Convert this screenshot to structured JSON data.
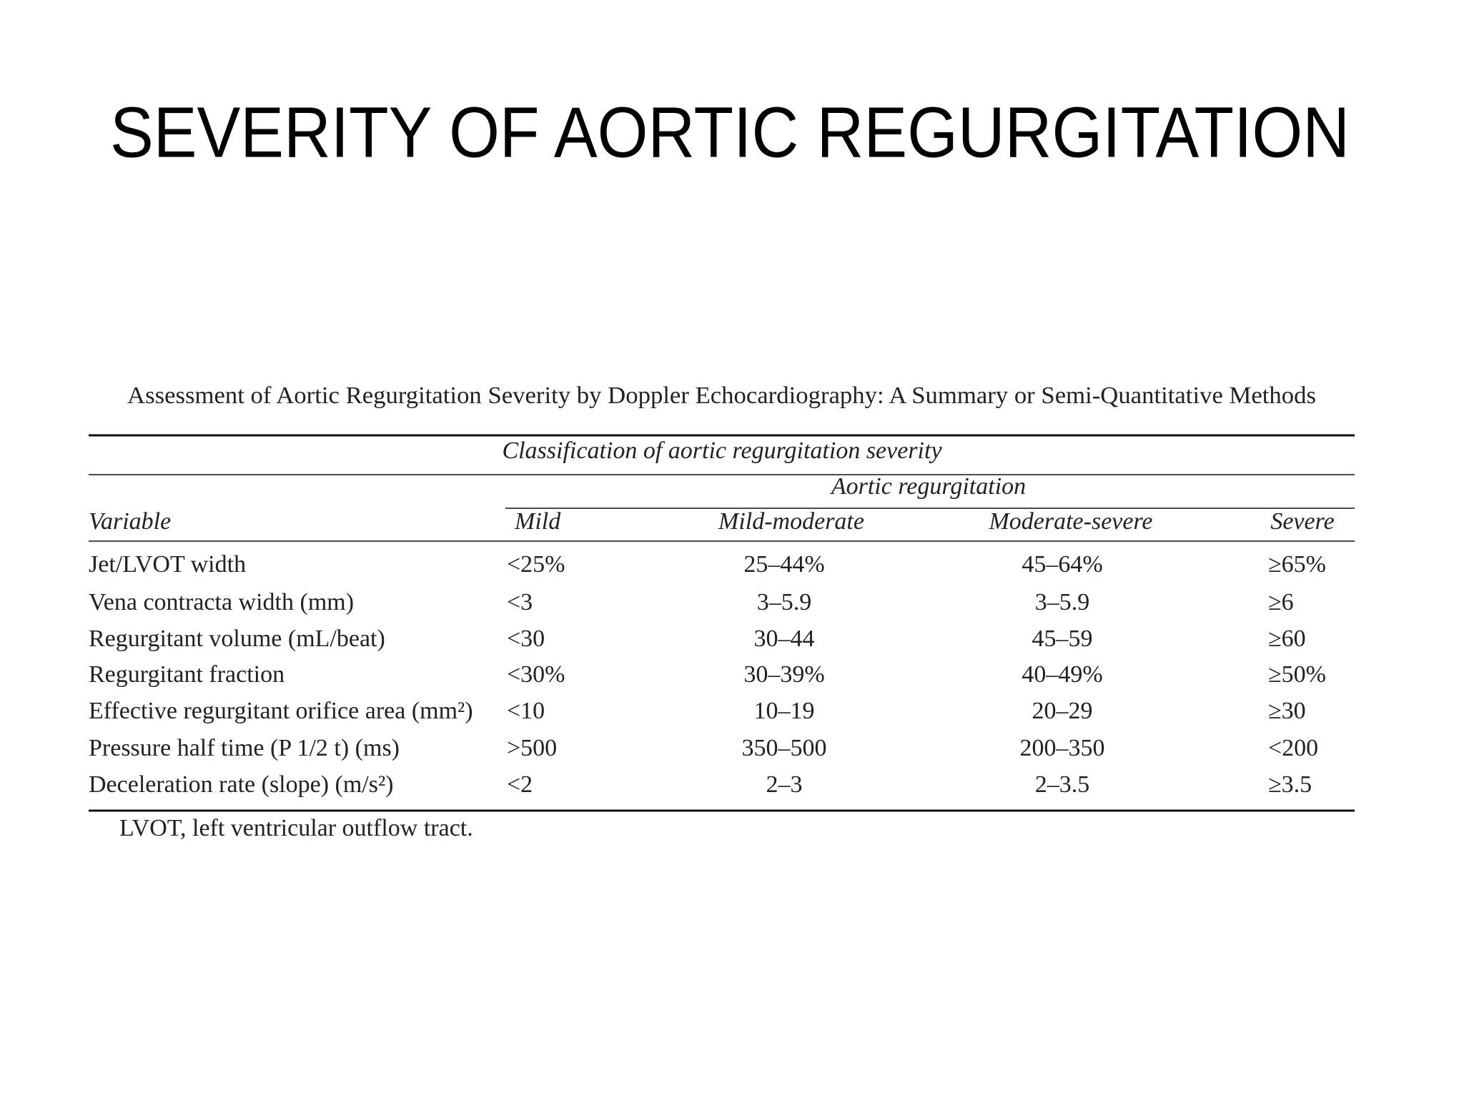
{
  "title": "SEVERITY OF AORTIC REGURGITATION",
  "table": {
    "caption": "Assessment of Aortic Regurgitation Severity by Doppler Echocardiography: A Summary or Semi-Quantitative Methods",
    "group_header": "Classification of aortic regurgitation severity",
    "subgroup_header": "Aortic regurgitation",
    "columns": [
      "Variable",
      "Mild",
      "Mild-moderate",
      "Moderate-severe",
      "Severe"
    ],
    "rows": [
      [
        "Jet/LVOT width",
        "<25%",
        "25–44%",
        "45–64%",
        "≥65%"
      ],
      [
        "Vena contracta width (mm)",
        "<3",
        "3–5.9",
        "3–5.9",
        "≥6"
      ],
      [
        "Regurgitant volume (mL/beat)",
        "<30",
        "30–44",
        "45–59",
        "≥60"
      ],
      [
        "Regurgitant fraction",
        "<30%",
        "30–39%",
        "40–49%",
        "≥50%"
      ],
      [
        "Effective regurgitant orifice area (mm²)",
        "<10",
        "10–19",
        "20–29",
        "≥30"
      ],
      [
        "Pressure half time (P 1/2 t) (ms)",
        ">500",
        "350–500",
        "200–350",
        "<200"
      ],
      [
        "Deceleration rate (slope) (m/s²)",
        "<2",
        "2–3",
        "2–3.5",
        "≥3.5"
      ]
    ],
    "footnote": "LVOT, left ventricular outflow tract."
  }
}
